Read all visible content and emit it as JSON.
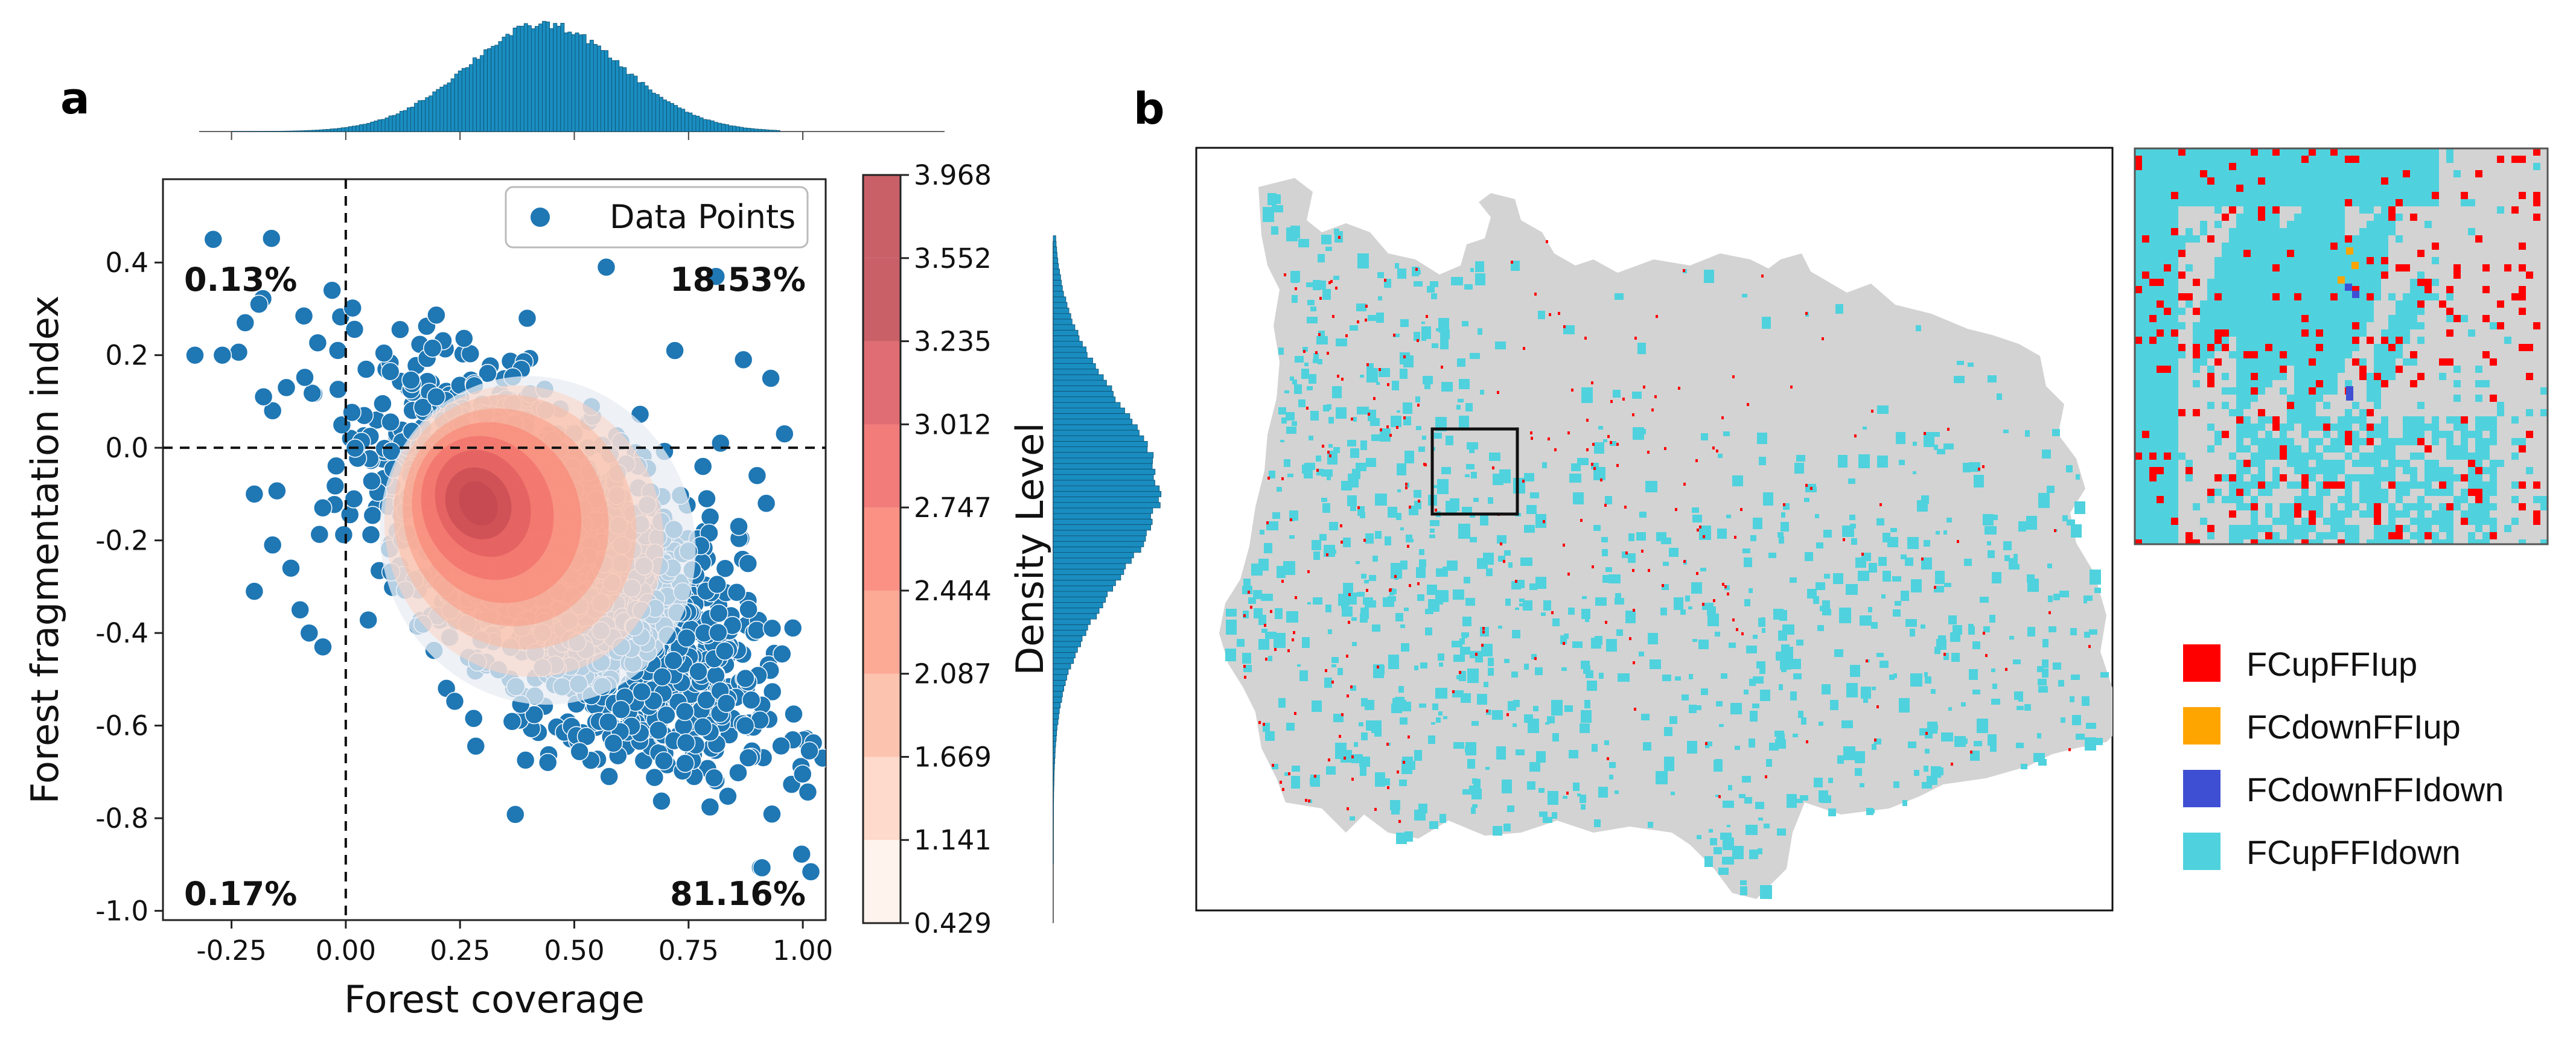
{
  "panels": {
    "a": "a",
    "b": "b"
  },
  "colors": {
    "points": "#1f77b4",
    "points_edge": "#ffffff",
    "hist": "#1a8dc0",
    "map_background": "#d3d3d3",
    "fc_up_ffi_up": "#ff0000",
    "fc_down_ffi_up": "#ffa500",
    "fc_down_ffi_down": "#3f4fd4",
    "fc_up_ffi_down": "#4fd2dd",
    "density_ramp": [
      "#fff1ea",
      "#fdd4c2",
      "#fcb9a1",
      "#fb9a83",
      "#f97e6e",
      "#ef6563",
      "#d9535a",
      "#c0444e"
    ]
  },
  "chart_data": [
    {
      "type": "scatter",
      "subtype": "scatter with density contours and marginal histograms",
      "title": "",
      "xlabel": "Forest coverage",
      "ylabel": "Forest fragmentation index",
      "xlim": [
        -0.4,
        1.05
      ],
      "ylim": [
        -1.02,
        0.58
      ],
      "x_ticks": [
        "-0.25",
        "0.00",
        "0.25",
        "0.50",
        "0.75",
        "1.00"
      ],
      "y_ticks": [
        "0.4",
        "0.2",
        "0.0",
        "-0.2",
        "-0.4",
        "-0.6",
        "-0.8",
        "-1.0"
      ],
      "x_tick_values": [
        -0.25,
        0.0,
        0.25,
        0.5,
        0.75,
        1.0
      ],
      "y_tick_values": [
        0.4,
        0.2,
        0.0,
        -0.2,
        -0.4,
        -0.6,
        -0.8,
        -1.0
      ],
      "reference_lines": {
        "x": 0.0,
        "y": 0.0,
        "style": "dashed"
      },
      "legend": {
        "label": "Data Points",
        "placement": "top-right"
      },
      "quadrant_labels": {
        "top_left": "0.13%",
        "top_right": "18.53%",
        "bottom_left": "0.17%",
        "bottom_right": "81.16%"
      },
      "cloud_core": {
        "center": [
          0.48,
          -0.26
        ],
        "spread": [
          0.19,
          0.19
        ],
        "correlation": -0.62
      },
      "outliers": [
        {
          "x": -0.29,
          "y": 0.45
        },
        {
          "x": -0.33,
          "y": 0.2
        },
        {
          "x": -0.27,
          "y": 0.2
        },
        {
          "x": -0.22,
          "y": 0.27
        },
        {
          "x": -0.19,
          "y": 0.31
        },
        {
          "x": -0.16,
          "y": 0.08
        },
        {
          "x": -0.18,
          "y": 0.11
        },
        {
          "x": -0.13,
          "y": 0.13
        },
        {
          "x": -0.2,
          "y": -0.1
        },
        {
          "x": -0.2,
          "y": -0.31
        },
        {
          "x": -0.16,
          "y": -0.21
        },
        {
          "x": -0.12,
          "y": -0.26
        },
        {
          "x": -0.08,
          "y": -0.4
        },
        {
          "x": -0.05,
          "y": -0.43
        },
        {
          "x": 0.57,
          "y": 0.39
        },
        {
          "x": 0.81,
          "y": 0.37
        },
        {
          "x": 0.87,
          "y": 0.19
        },
        {
          "x": 0.93,
          "y": 0.15
        },
        {
          "x": 0.96,
          "y": 0.03
        },
        {
          "x": 0.9,
          "y": -0.06
        },
        {
          "x": 0.92,
          "y": -0.12
        },
        {
          "x": 0.86,
          "y": -0.17
        },
        {
          "x": 0.82,
          "y": 0.01
        },
        {
          "x": 0.88,
          "y": -0.25
        },
        {
          "x": 0.72,
          "y": 0.21
        },
        {
          "x": -0.03,
          "y": 0.34
        },
        {
          "x": -0.1,
          "y": -0.35
        }
      ],
      "density_levels": [
        "0.429",
        "1.141",
        "1.669",
        "2.087",
        "2.444",
        "2.747",
        "3.012",
        "3.235",
        "3.552",
        "3.968"
      ],
      "colorbar_label": "Density Level",
      "density_contours": [
        {
          "level": 0.429,
          "center": [
            0.42,
            -0.2
          ],
          "rx": 0.34,
          "ry": 0.36
        },
        {
          "level": 1.141,
          "center": [
            0.39,
            -0.18
          ],
          "rx": 0.3,
          "ry": 0.32
        },
        {
          "level": 1.669,
          "center": [
            0.37,
            -0.16
          ],
          "rx": 0.26,
          "ry": 0.28
        },
        {
          "level": 2.087,
          "center": [
            0.35,
            -0.15
          ],
          "rx": 0.22,
          "ry": 0.24
        },
        {
          "level": 2.444,
          "center": [
            0.33,
            -0.14
          ],
          "rx": 0.18,
          "ry": 0.2
        },
        {
          "level": 2.747,
          "center": [
            0.31,
            -0.13
          ],
          "rx": 0.14,
          "ry": 0.16
        },
        {
          "level": 3.012,
          "center": [
            0.3,
            -0.12
          ],
          "rx": 0.1,
          "ry": 0.12
        },
        {
          "level": 3.235,
          "center": [
            0.29,
            -0.12
          ],
          "rx": 0.07,
          "ry": 0.08
        },
        {
          "level": 3.552,
          "center": [
            0.29,
            -0.12
          ],
          "rx": 0.04,
          "ry": 0.05
        }
      ],
      "marginal_x": {
        "bin_start": -0.33,
        "bin_end": 0.95,
        "bin_width": 0.008,
        "mean": 0.43,
        "sd": 0.17,
        "peak_count": 1.0
      },
      "marginal_y": {
        "bin_start": -0.97,
        "bin_end": 0.45,
        "bin_width": 0.012,
        "mean": -0.1,
        "sd": 0.2,
        "peak_count": 1.0
      }
    },
    {
      "type": "map",
      "title": "",
      "legend": [
        {
          "key": "fc_up_ffi_up",
          "label": "FCupFFIup",
          "color": "#ff0000"
        },
        {
          "key": "fc_down_ffi_up",
          "label": "FCdownFFIup",
          "color": "#ffa500"
        },
        {
          "key": "fc_down_ffi_down",
          "label": "FCdownFFIdown",
          "color": "#3f4fd4"
        },
        {
          "key": "fc_up_ffi_down",
          "label": "FCupFFIdown",
          "color": "#4fd2dd"
        }
      ],
      "inset": {
        "description_visible": false,
        "zoom_box_shown": true
      }
    }
  ]
}
